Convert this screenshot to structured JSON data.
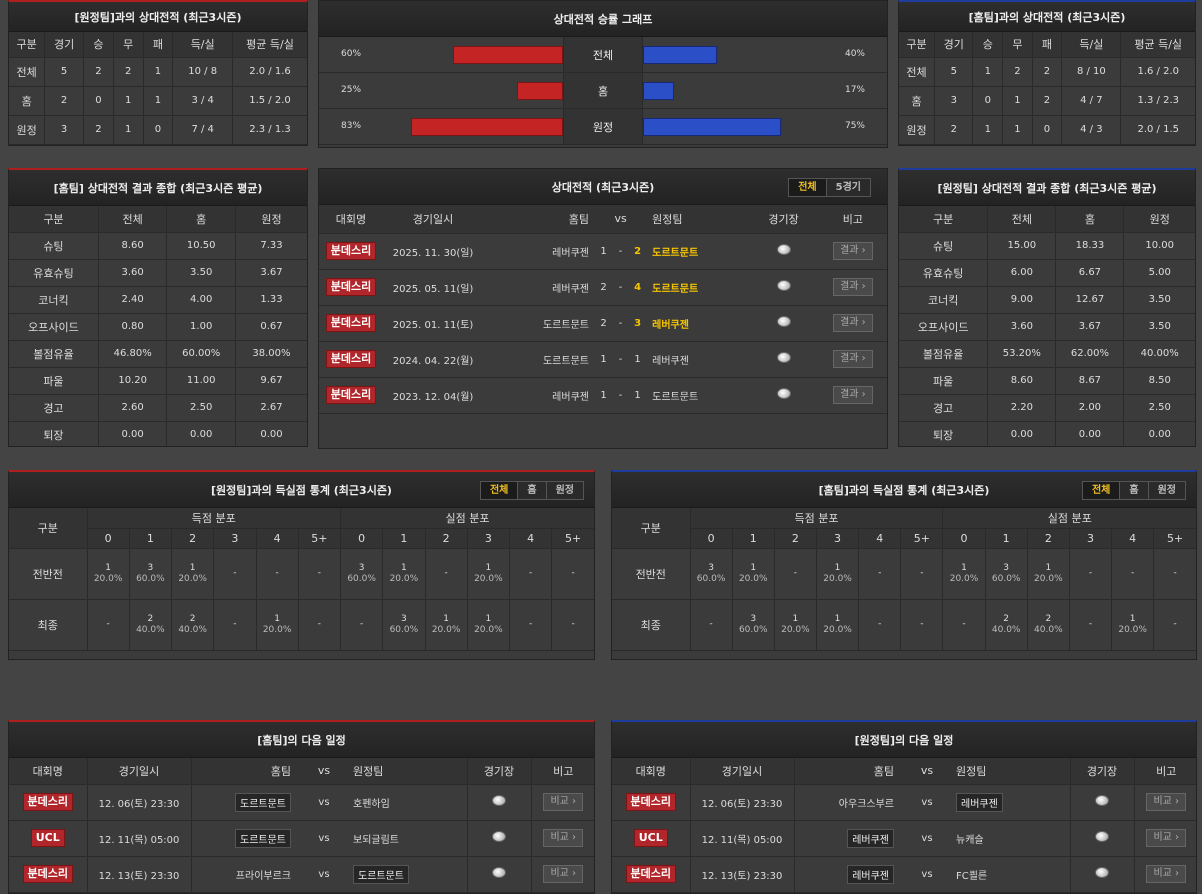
{
  "h2h_away": {
    "title": "[원정팀]과의 상대전적 (최근3시즌)",
    "headers": [
      "구분",
      "경기",
      "승",
      "무",
      "패",
      "득/실",
      "평균 득/실"
    ],
    "rows": [
      [
        "전체",
        "5",
        "2",
        "2",
        "1",
        "10 / 8",
        "2.0 / 1.6"
      ],
      [
        "홈",
        "2",
        "0",
        "1",
        "1",
        "3 / 4",
        "1.5 / 2.0"
      ],
      [
        "원정",
        "3",
        "2",
        "1",
        "0",
        "7 / 4",
        "2.3 / 1.3"
      ]
    ]
  },
  "h2h_home": {
    "title": "[홈팀]과의 상대전적 (최근3시즌)",
    "headers": [
      "구분",
      "경기",
      "승",
      "무",
      "패",
      "득/실",
      "평균 득/실"
    ],
    "rows": [
      [
        "전체",
        "5",
        "1",
        "2",
        "2",
        "8 / 10",
        "1.6 / 2.0"
      ],
      [
        "홈",
        "3",
        "0",
        "1",
        "2",
        "4 / 7",
        "1.3 / 2.3"
      ],
      [
        "원정",
        "2",
        "1",
        "1",
        "0",
        "4 / 3",
        "2.0 / 1.5"
      ]
    ]
  },
  "win_graph": {
    "title": "상대전적 승률 그래프",
    "rows": [
      {
        "label": "전체",
        "left": "60%",
        "right": "40%",
        "left_value": 60,
        "right_value": 40
      },
      {
        "label": "홈",
        "left": "25%",
        "right": "17%",
        "left_value": 25,
        "right_value": 17
      },
      {
        "label": "원정",
        "left": "83%",
        "right": "75%",
        "left_value": 83,
        "right_value": 75
      }
    ]
  },
  "home_summary": {
    "title": "[홈팀] 상대전적 결과 종합 (최근3시즌 평균)",
    "headers": [
      "구분",
      "전체",
      "홈",
      "원정"
    ],
    "rows": [
      [
        "슈팅",
        "8.60",
        "10.50",
        "7.33"
      ],
      [
        "유효슈팅",
        "3.60",
        "3.50",
        "3.67"
      ],
      [
        "코너킥",
        "2.40",
        "4.00",
        "1.33"
      ],
      [
        "오프사이드",
        "0.80",
        "1.00",
        "0.67"
      ],
      [
        "볼점유율",
        "46.80%",
        "60.00%",
        "38.00%"
      ],
      [
        "파울",
        "10.20",
        "11.00",
        "9.67"
      ],
      [
        "경고",
        "2.60",
        "2.50",
        "2.67"
      ],
      [
        "퇴장",
        "0.00",
        "0.00",
        "0.00"
      ]
    ]
  },
  "away_summary": {
    "title": "[원정팀] 상대전적 결과 종합 (최근3시즌 평균)",
    "headers": [
      "구분",
      "전체",
      "홈",
      "원정"
    ],
    "rows": [
      [
        "슈팅",
        "15.00",
        "18.33",
        "10.00"
      ],
      [
        "유효슈팅",
        "6.00",
        "6.67",
        "5.00"
      ],
      [
        "코너킥",
        "9.00",
        "12.67",
        "3.50"
      ],
      [
        "오프사이드",
        "3.60",
        "3.67",
        "3.50"
      ],
      [
        "볼점유율",
        "53.20%",
        "62.00%",
        "40.00%"
      ],
      [
        "파울",
        "8.60",
        "8.67",
        "8.50"
      ],
      [
        "경고",
        "2.20",
        "2.00",
        "2.50"
      ],
      [
        "퇴장",
        "0.00",
        "0.00",
        "0.00"
      ]
    ]
  },
  "h2h_matches": {
    "title": "상대전적 (최근3시즌)",
    "tabs": [
      "전체",
      "5경기"
    ],
    "headers": {
      "league": "대회명",
      "date": "경기일시",
      "home": "홈팀",
      "vs": "vs",
      "away": "원정팀",
      "venue": "경기장",
      "note": "비고"
    },
    "button": "결과 ›",
    "rows": [
      {
        "league": "분데스리",
        "date": "2025. 11. 30(일)",
        "home": "레버쿠젠",
        "hs": "1",
        "as": "2",
        "away": "도르트문트",
        "winner": "away"
      },
      {
        "league": "분데스리",
        "date": "2025. 05. 11(일)",
        "home": "레버쿠젠",
        "hs": "2",
        "as": "4",
        "away": "도르트문트",
        "winner": "away"
      },
      {
        "league": "분데스리",
        "date": "2025. 01. 11(토)",
        "home": "도르트문트",
        "hs": "2",
        "as": "3",
        "away": "레버쿠젠",
        "winner": "away"
      },
      {
        "league": "분데스리",
        "date": "2024. 04. 22(월)",
        "home": "도르트문트",
        "hs": "1",
        "as": "1",
        "away": "레버쿠젠",
        "winner": "none"
      },
      {
        "league": "분데스리",
        "date": "2023. 12. 04(월)",
        "home": "레버쿠젠",
        "hs": "1",
        "as": "1",
        "away": "도르트문트",
        "winner": "none"
      }
    ]
  },
  "goal_stats_away": {
    "title": "[원정팀]과의 득실점 통계 (최근3시즌)",
    "tabs": [
      "전체",
      "홈",
      "원정"
    ],
    "group_label": "구분",
    "scored_label": "득점 분포",
    "conceded_label": "실점 분포",
    "cols": [
      "0",
      "1",
      "2",
      "3",
      "4",
      "5+"
    ],
    "rows": [
      {
        "label": "전반전",
        "scored": [
          [
            "1",
            "20.0%"
          ],
          [
            "3",
            "60.0%"
          ],
          [
            "1",
            "20.0%"
          ],
          [
            "-",
            ""
          ],
          [
            "-",
            ""
          ],
          [
            "-",
            ""
          ]
        ],
        "conceded": [
          [
            "3",
            "60.0%"
          ],
          [
            "1",
            "20.0%"
          ],
          [
            "-",
            ""
          ],
          [
            "1",
            "20.0%"
          ],
          [
            "-",
            ""
          ],
          [
            "-",
            ""
          ]
        ]
      },
      {
        "label": "최종",
        "scored": [
          [
            "-",
            ""
          ],
          [
            "2",
            "40.0%"
          ],
          [
            "2",
            "40.0%"
          ],
          [
            "-",
            ""
          ],
          [
            "1",
            "20.0%"
          ],
          [
            "-",
            ""
          ]
        ],
        "conceded": [
          [
            "-",
            ""
          ],
          [
            "3",
            "60.0%"
          ],
          [
            "1",
            "20.0%"
          ],
          [
            "1",
            "20.0%"
          ],
          [
            "-",
            ""
          ],
          [
            "-",
            ""
          ]
        ]
      }
    ]
  },
  "goal_stats_home": {
    "title": "[홈팀]과의 득실점 통계 (최근3시즌)",
    "tabs": [
      "전체",
      "홈",
      "원정"
    ],
    "group_label": "구분",
    "scored_label": "득점 분포",
    "conceded_label": "실점 분포",
    "cols": [
      "0",
      "1",
      "2",
      "3",
      "4",
      "5+"
    ],
    "rows": [
      {
        "label": "전반전",
        "scored": [
          [
            "3",
            "60.0%"
          ],
          [
            "1",
            "20.0%"
          ],
          [
            "-",
            ""
          ],
          [
            "1",
            "20.0%"
          ],
          [
            "-",
            ""
          ],
          [
            "-",
            ""
          ]
        ],
        "conceded": [
          [
            "1",
            "20.0%"
          ],
          [
            "3",
            "60.0%"
          ],
          [
            "1",
            "20.0%"
          ],
          [
            "-",
            ""
          ],
          [
            "-",
            ""
          ],
          [
            "-",
            ""
          ]
        ]
      },
      {
        "label": "최종",
        "scored": [
          [
            "-",
            ""
          ],
          [
            "3",
            "60.0%"
          ],
          [
            "1",
            "20.0%"
          ],
          [
            "1",
            "20.0%"
          ],
          [
            "-",
            ""
          ],
          [
            "-",
            ""
          ]
        ],
        "conceded": [
          [
            "-",
            ""
          ],
          [
            "2",
            "40.0%"
          ],
          [
            "2",
            "40.0%"
          ],
          [
            "-",
            ""
          ],
          [
            "1",
            "20.0%"
          ],
          [
            "-",
            ""
          ]
        ]
      }
    ]
  },
  "home_next": {
    "title": "[홈팀]의 다음 일정",
    "headers": {
      "league": "대회명",
      "date": "경기일시",
      "home": "홈팀",
      "vs": "vs",
      "away": "원정팀",
      "venue": "경기장",
      "note": "비고"
    },
    "button": "비교 ›",
    "rows": [
      {
        "league": "분데스리",
        "date": "12. 06(토) 23:30",
        "home": "도르트문트",
        "away": "호펜하임",
        "hl": "home"
      },
      {
        "league": "UCL",
        "date": "12. 11(목) 05:00",
        "home": "도르트문트",
        "away": "보되글림트",
        "hl": "home"
      },
      {
        "league": "분데스리",
        "date": "12. 13(토) 23:30",
        "home": "프라이부르크",
        "away": "도르트문트",
        "hl": "away"
      }
    ]
  },
  "away_next": {
    "title": "[원정팀]의 다음 일정",
    "headers": {
      "league": "대회명",
      "date": "경기일시",
      "home": "홈팀",
      "vs": "vs",
      "away": "원정팀",
      "venue": "경기장",
      "note": "비고"
    },
    "button": "비교 ›",
    "rows": [
      {
        "league": "분데스리",
        "date": "12. 06(토) 23:30",
        "home": "아우크스부르",
        "away": "레버쿠젠",
        "hl": "away"
      },
      {
        "league": "UCL",
        "date": "12. 11(목) 05:00",
        "home": "레버쿠젠",
        "away": "뉴캐슬",
        "hl": "home"
      },
      {
        "league": "분데스리",
        "date": "12. 13(토) 23:30",
        "home": "레버쿠젠",
        "away": "FC쾰른",
        "hl": "home"
      }
    ]
  }
}
